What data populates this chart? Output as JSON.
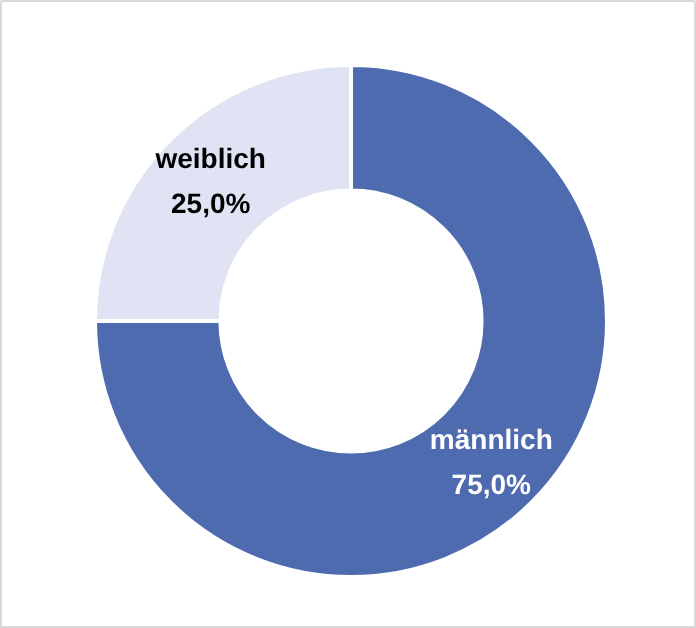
{
  "chart_data": {
    "type": "donut",
    "categories": [
      "männlich",
      "weiblich"
    ],
    "values": [
      75.0,
      25.0
    ],
    "colors": [
      "#4f6bb0",
      "#dfe3f3"
    ],
    "value_labels": [
      "75,0%",
      "25,0%"
    ]
  }
}
